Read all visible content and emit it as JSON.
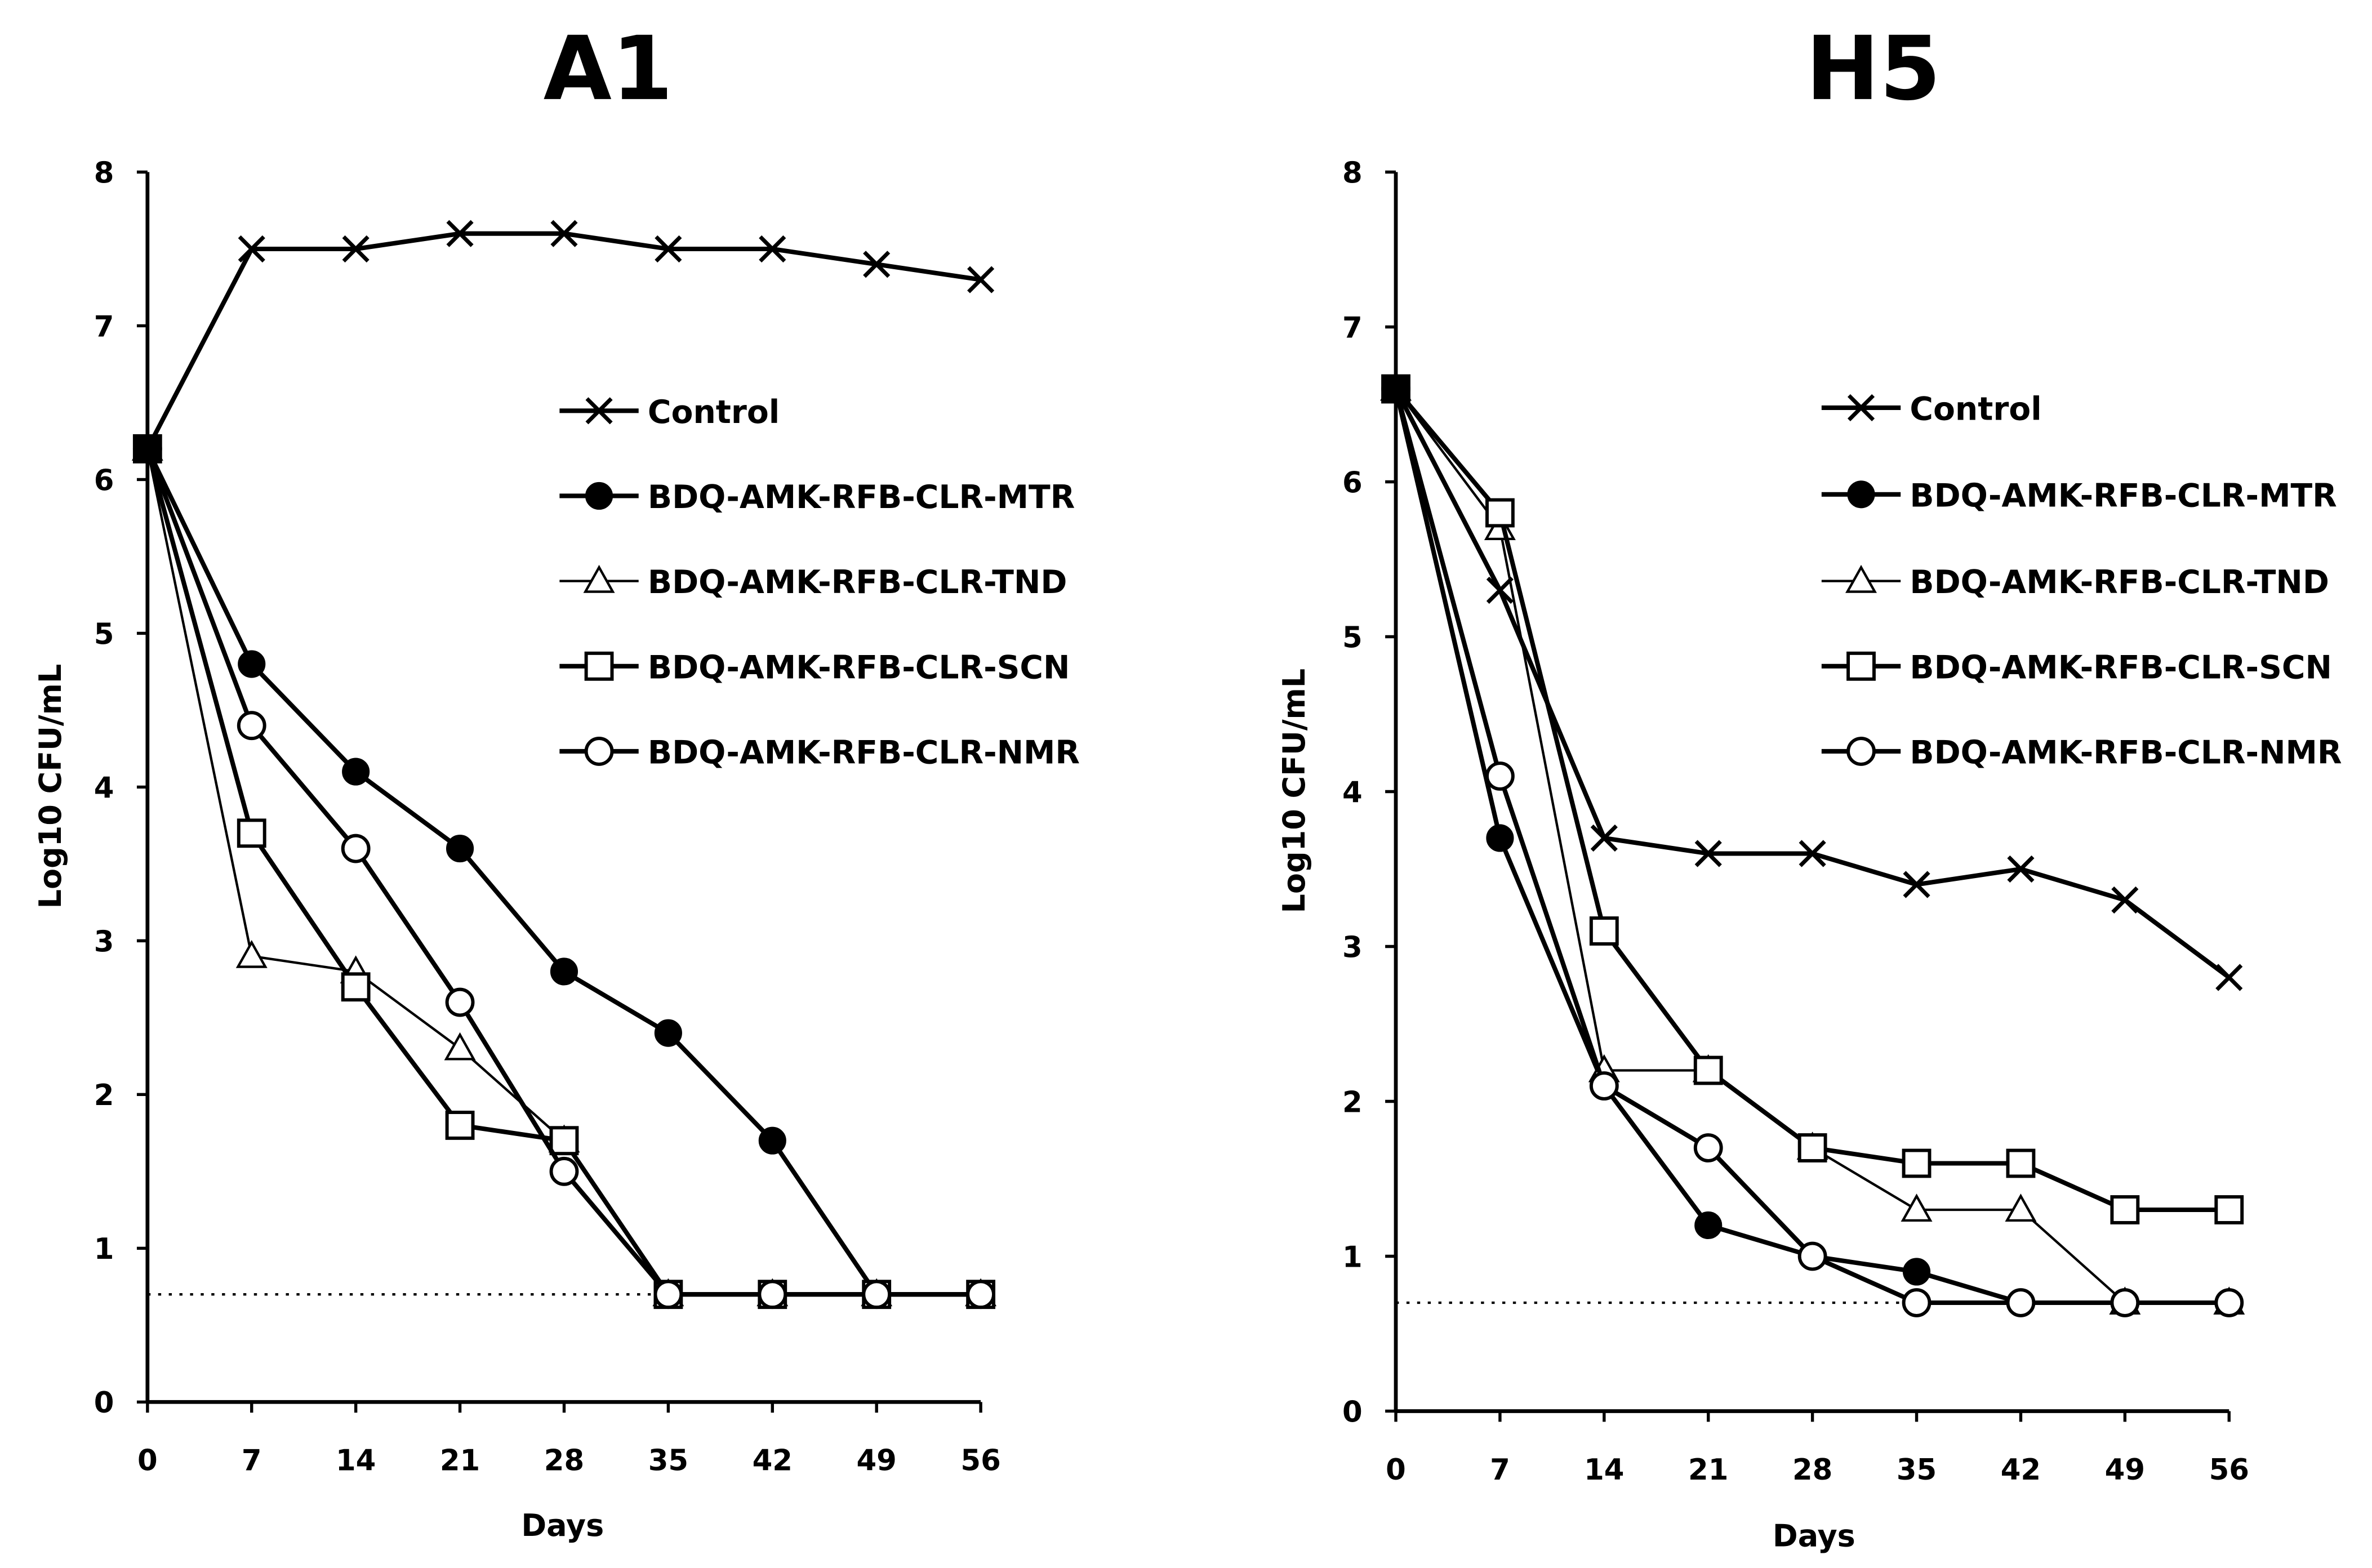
{
  "chart_data": [
    {
      "type": "line",
      "title": "A1",
      "xlabel": "Days",
      "ylabel": "Log10 CFU/mL",
      "x": [
        0,
        7,
        14,
        21,
        28,
        35,
        42,
        49,
        56
      ],
      "xticks": [
        "0",
        "7",
        "14",
        "21",
        "28",
        "35",
        "42",
        "49",
        "56"
      ],
      "yticks": [
        "0",
        "1",
        "2",
        "3",
        "4",
        "5",
        "6",
        "7",
        "8"
      ],
      "xlim": [
        0,
        56
      ],
      "ylim": [
        0,
        8
      ],
      "grid": false,
      "legend_position": "right",
      "reference_line": {
        "y": 0.7,
        "x_range": [
          0,
          35
        ],
        "style": "dotted"
      },
      "series": [
        {
          "name": "Control",
          "marker": "x",
          "values": [
            6.2,
            7.5,
            7.5,
            7.6,
            7.6,
            7.5,
            7.5,
            7.4,
            7.3
          ]
        },
        {
          "name": "BDQ-AMK-RFB-CLR-MTR",
          "marker": "filled-circle",
          "values": [
            6.2,
            4.8,
            4.1,
            3.6,
            2.8,
            2.4,
            1.7,
            0.7,
            0.7
          ]
        },
        {
          "name": "BDQ-AMK-RFB-CLR-TND",
          "marker": "open-triangle",
          "values": [
            6.2,
            2.9,
            2.8,
            2.3,
            1.7,
            0.7,
            0.7,
            0.7,
            0.7
          ]
        },
        {
          "name": "BDQ-AMK-RFB-CLR-SCN",
          "marker": "open-square",
          "values": [
            6.2,
            3.7,
            2.7,
            1.8,
            1.7,
            0.7,
            0.7,
            0.7,
            0.7
          ]
        },
        {
          "name": "BDQ-AMK-RFB-CLR-NMR",
          "marker": "open-circle",
          "values": [
            6.2,
            4.4,
            3.6,
            2.6,
            1.5,
            0.7,
            0.7,
            0.7,
            0.7
          ]
        }
      ]
    },
    {
      "type": "line",
      "title": "H5",
      "xlabel": "Days",
      "ylabel": "Log10 CFU/mL",
      "x": [
        0,
        7,
        14,
        21,
        28,
        35,
        42,
        49,
        56
      ],
      "xticks": [
        "0",
        "7",
        "14",
        "21",
        "28",
        "35",
        "42",
        "49",
        "56"
      ],
      "yticks": [
        "0",
        "1",
        "2",
        "3",
        "4",
        "5",
        "6",
        "7",
        "8"
      ],
      "xlim": [
        0,
        56
      ],
      "ylim": [
        0,
        8
      ],
      "grid": false,
      "legend_position": "right",
      "reference_line": {
        "y": 0.7,
        "x_range": [
          0,
          35
        ],
        "style": "dotted"
      },
      "series": [
        {
          "name": "Control",
          "marker": "x",
          "values": [
            6.6,
            5.3,
            3.7,
            3.6,
            3.6,
            3.4,
            3.5,
            3.3,
            2.8
          ]
        },
        {
          "name": "BDQ-AMK-RFB-CLR-MTR",
          "marker": "filled-circle",
          "values": [
            6.6,
            3.7,
            2.1,
            1.2,
            1.0,
            0.9,
            0.7,
            0.7,
            0.7
          ]
        },
        {
          "name": "BDQ-AMK-RFB-CLR-TND",
          "marker": "open-triangle",
          "values": [
            6.6,
            5.7,
            2.2,
            2.2,
            1.7,
            1.3,
            1.3,
            0.7,
            0.7
          ]
        },
        {
          "name": "BDQ-AMK-RFB-CLR-SCN",
          "marker": "open-square",
          "values": [
            6.6,
            5.8,
            3.1,
            2.2,
            1.7,
            1.6,
            1.6,
            1.3,
            1.3
          ]
        },
        {
          "name": "BDQ-AMK-RFB-CLR-NMR",
          "marker": "open-circle",
          "values": [
            6.6,
            4.1,
            2.1,
            1.7,
            1.0,
            0.7,
            0.7,
            0.7,
            0.7
          ]
        }
      ]
    }
  ],
  "colors": {
    "line": "#000000",
    "background": "#ffffff"
  }
}
